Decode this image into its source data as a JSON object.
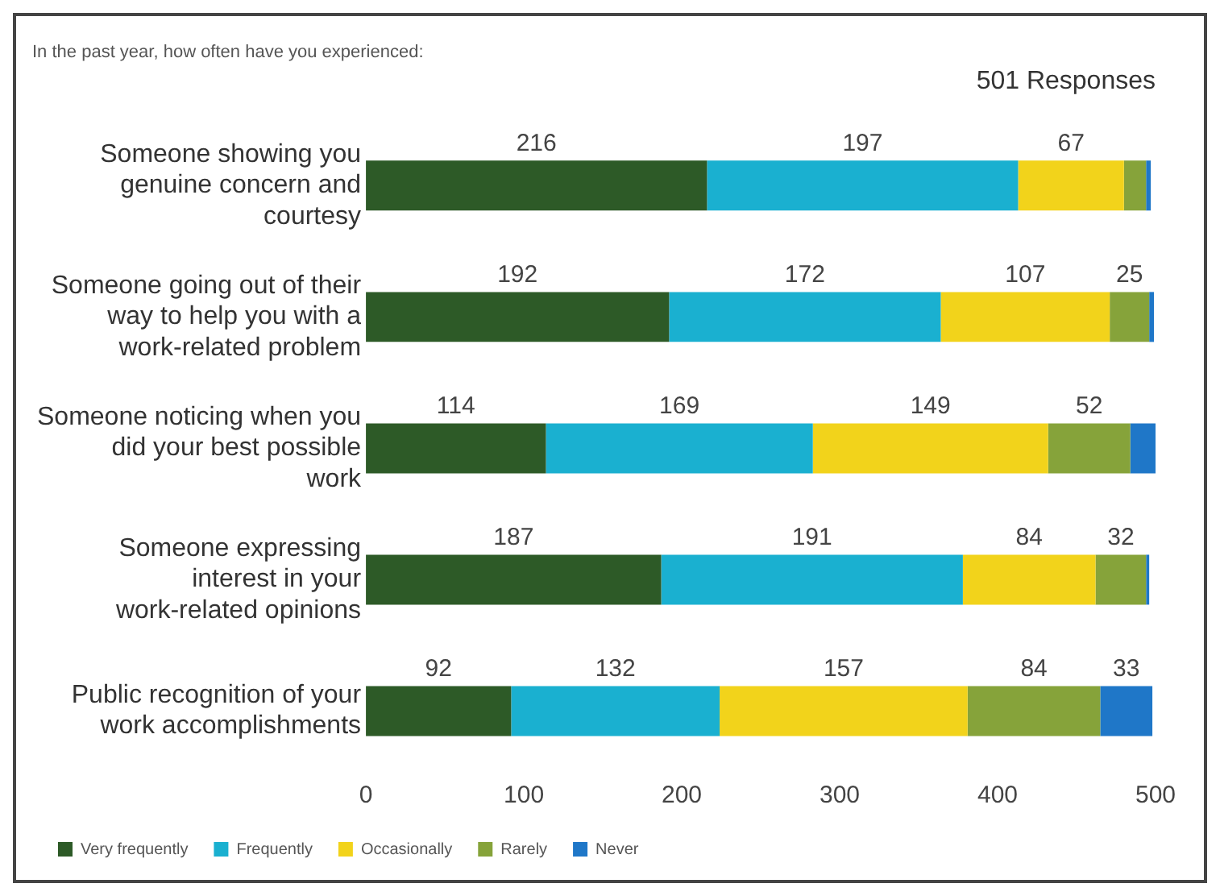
{
  "chart_data": {
    "type": "bar",
    "orientation": "horizontal",
    "stacked": true,
    "title": "In the past year, how often have you experienced:",
    "subtitle": "501 Responses",
    "categories": [
      "Someone showing you genuine concern and courtesy",
      "Someone going out of their way to help you with a work-related problem",
      "Someone noticing when you did your best possible work",
      "Someone expressing interest in your work-related opinions",
      "Public recognition of your work accomplishments"
    ],
    "series": [
      {
        "name": "Very frequently",
        "color": "#2d5a27",
        "values": [
          216,
          192,
          114,
          187,
          92
        ],
        "value_labels": [
          "216",
          "192",
          "114",
          "187",
          "92"
        ]
      },
      {
        "name": "Frequently",
        "color": "#1ab0d0",
        "values": [
          197,
          172,
          169,
          191,
          132
        ],
        "value_labels": [
          "197",
          "172",
          "169",
          "191",
          "132"
        ]
      },
      {
        "name": "Occasionally",
        "color": "#f2d31b",
        "values": [
          67,
          107,
          149,
          84,
          157
        ],
        "value_labels": [
          "67",
          "107",
          "149",
          "84",
          "157"
        ]
      },
      {
        "name": "Rarely",
        "color": "#86a33a",
        "values": [
          14,
          25,
          52,
          32,
          84
        ],
        "value_labels": [
          null,
          "25",
          "52",
          "32",
          "84"
        ]
      },
      {
        "name": "Never",
        "color": "#1f77c8",
        "values": [
          3,
          3,
          17,
          2,
          33
        ],
        "value_labels": [
          null,
          null,
          null,
          null,
          "33"
        ]
      }
    ],
    "xlim": [
      0,
      500
    ],
    "xticks": [
      0,
      100,
      200,
      300,
      400,
      500
    ],
    "grid": false,
    "legend": "bottom left"
  }
}
